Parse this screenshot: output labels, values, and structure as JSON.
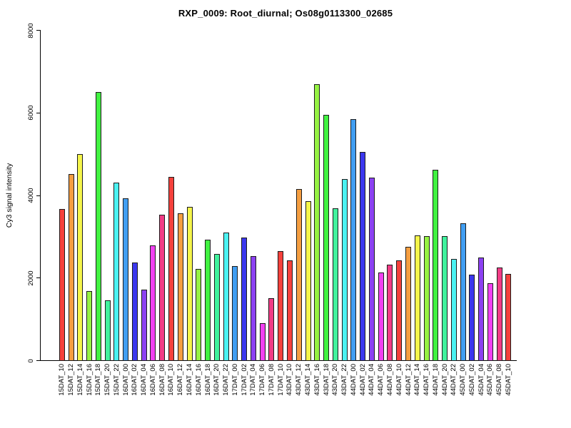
{
  "title": "RXP_0009: Root_diurnal; Os08g0113300_02685",
  "y_axis": {
    "label": "Cy3 signal intensity",
    "tick_labels": [
      "0",
      "2000",
      "4000",
      "6000",
      "8000"
    ],
    "tick_values": [
      0,
      2000,
      4000,
      6000,
      8000
    ]
  },
  "chart_data": {
    "type": "bar",
    "title": "RXP_0009: Root_diurnal; Os08g0113300_02685",
    "xlabel": "",
    "ylabel": "Cy3 signal intensity",
    "ylim": [
      0,
      8000
    ],
    "grid": false,
    "legend": "none",
    "categories": [
      "15DAT_10",
      "15DAT_12",
      "15DAT_14",
      "15DAT_16",
      "15DAT_18",
      "15DAT_20",
      "15DAT_22",
      "16DAT_00",
      "16DAT_02",
      "16DAT_04",
      "16DAT_06",
      "16DAT_08",
      "16DAT_10",
      "16DAT_12",
      "16DAT_14",
      "16DAT_16",
      "16DAT_18",
      "16DAT_20",
      "16DAT_22",
      "17DAT_00",
      "17DAT_02",
      "17DAT_04",
      "17DAT_06",
      "17DAT_08",
      "17DAT_10",
      "43DAT_10",
      "43DAT_12",
      "43DAT_14",
      "43DAT_16",
      "43DAT_18",
      "43DAT_20",
      "43DAT_22",
      "44DAT_00",
      "44DAT_02",
      "44DAT_04",
      "44DAT_06",
      "44DAT_08",
      "44DAT_10",
      "44DAT_12",
      "44DAT_14",
      "44DAT_16",
      "44DAT_18",
      "44DAT_20",
      "44DAT_22",
      "45DAT_00",
      "45DAT_02",
      "45DAT_04",
      "45DAT_06",
      "45DAT_08",
      "45DAT_10"
    ],
    "values": [
      3680,
      4520,
      5010,
      1680,
      6500,
      1470,
      4310,
      3940,
      2370,
      1720,
      2790,
      3530,
      4450,
      3570,
      3730,
      2220,
      2930,
      2580,
      3110,
      2290,
      2980,
      2530,
      910,
      1510,
      2660,
      2430,
      4160,
      3870,
      6690,
      5960,
      3700,
      4400,
      5860,
      5050,
      4440,
      2140,
      2320,
      2430,
      2750,
      3040,
      3020,
      4630,
      3020,
      2470,
      3330,
      2090,
      2500,
      1880,
      2260,
      2100
    ],
    "bar_palette_rainbow12": [
      "#F5413C",
      "#F59E41",
      "#F5F54B",
      "#96F243",
      "#41F241",
      "#41F29E",
      "#4BF2F2",
      "#419EF2",
      "#3B37EE",
      "#8C41F2",
      "#F241F2",
      "#F23C86"
    ],
    "color_rule": "palette_index = (bar_index % 25) % 12",
    "bar_border_color": "#1c1c1c",
    "background_color": "#ffffff"
  }
}
